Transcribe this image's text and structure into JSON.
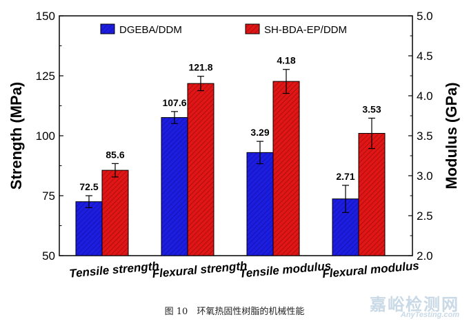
{
  "chart_data": {
    "type": "bar",
    "categories": [
      "Tensile strength",
      "Flexural strength",
      "Tensile modulus",
      "Flexural modulus"
    ],
    "series": [
      {
        "name": "DGEBA/DDM",
        "color": "#1d1de0",
        "values": [
          72.5,
          107.6,
          3.29,
          2.71
        ],
        "axis": [
          "left",
          "left",
          "right",
          "right"
        ],
        "labels": [
          "72.5",
          "107.6",
          "3.29",
          "2.71"
        ],
        "errors": [
          2.5,
          2.5,
          0.14,
          0.17
        ]
      },
      {
        "name": "SH-BDA-EP/DDM",
        "color": "#e01515",
        "values": [
          85.6,
          121.8,
          4.18,
          3.53
        ],
        "axis": [
          "left",
          "left",
          "right",
          "right"
        ],
        "labels": [
          "85.6",
          "121.8",
          "4.18",
          "3.53"
        ],
        "errors": [
          2.8,
          3.0,
          0.15,
          0.19
        ]
      }
    ],
    "ylabel": "Strength (MPa)",
    "ylim": [
      50,
      150
    ],
    "yticks": [
      "50",
      "75",
      "100",
      "125",
      "150"
    ],
    "y2label": "Modulus (GPa)",
    "y2lim": [
      2.0,
      5.0
    ],
    "y2ticks": [
      "2.0",
      "2.5",
      "3.0",
      "3.5",
      "4.0",
      "4.5",
      "5.0"
    ],
    "legend_position": "top",
    "grid": false
  },
  "caption": "图 10　环氧热固性树脂的机械性能",
  "watermark": {
    "cn": "嘉峪检测网",
    "en": "AnyTesting.com"
  }
}
